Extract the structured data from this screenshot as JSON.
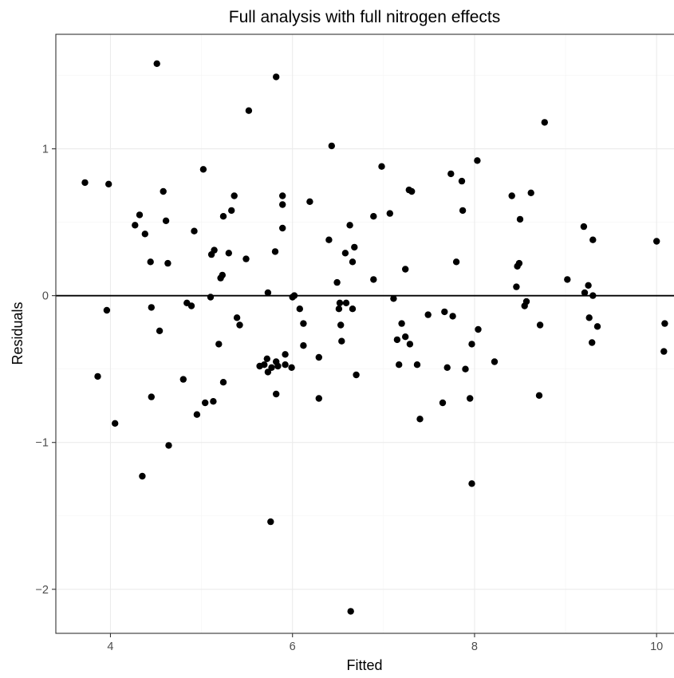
{
  "chart_data": {
    "type": "scatter",
    "title": "Full analysis with full nitrogen effects",
    "xlabel": "Fitted",
    "ylabel": "Residuals",
    "xlim": [
      3.4,
      10.2
    ],
    "ylim": [
      -2.3,
      1.78
    ],
    "x_ticks": [
      4,
      6,
      8,
      10
    ],
    "x_tick_labels": [
      "4",
      "6",
      "8",
      "10"
    ],
    "y_ticks": [
      -2,
      -1,
      0,
      1
    ],
    "y_tick_labels": [
      "−2",
      "−1",
      "0",
      "1"
    ],
    "x_minor_ticks": [
      5,
      7,
      9
    ],
    "y_minor_ticks": [
      -1.5,
      -0.5,
      0.5,
      1.5
    ],
    "grid": true,
    "reference_line_y": 0,
    "points": [
      [
        3.72,
        0.77
      ],
      [
        3.86,
        -0.55
      ],
      [
        3.96,
        -0.1
      ],
      [
        3.98,
        0.76
      ],
      [
        4.05,
        -0.87
      ],
      [
        4.27,
        0.48
      ],
      [
        4.32,
        0.55
      ],
      [
        4.35,
        -1.23
      ],
      [
        4.38,
        0.42
      ],
      [
        4.44,
        0.23
      ],
      [
        4.45,
        -0.08
      ],
      [
        4.45,
        -0.69
      ],
      [
        4.51,
        1.58
      ],
      [
        4.54,
        -0.24
      ],
      [
        4.58,
        0.71
      ],
      [
        4.61,
        0.51
      ],
      [
        4.63,
        0.22
      ],
      [
        4.64,
        -1.02
      ],
      [
        4.8,
        -0.57
      ],
      [
        4.84,
        -0.05
      ],
      [
        4.89,
        -0.07
      ],
      [
        4.92,
        0.44
      ],
      [
        4.95,
        -0.81
      ],
      [
        5.02,
        0.86
      ],
      [
        5.04,
        -0.73
      ],
      [
        5.1,
        -0.01
      ],
      [
        5.11,
        0.28
      ],
      [
        5.13,
        -0.72
      ],
      [
        5.14,
        0.31
      ],
      [
        5.19,
        -0.33
      ],
      [
        5.21,
        0.12
      ],
      [
        5.23,
        0.14
      ],
      [
        5.24,
        0.54
      ],
      [
        5.24,
        -0.59
      ],
      [
        5.3,
        0.29
      ],
      [
        5.33,
        0.58
      ],
      [
        5.36,
        0.68
      ],
      [
        5.39,
        -0.15
      ],
      [
        5.42,
        -0.2
      ],
      [
        5.49,
        0.25
      ],
      [
        5.52,
        1.26
      ],
      [
        5.64,
        -0.48
      ],
      [
        5.69,
        -0.47
      ],
      [
        5.72,
        -0.43
      ],
      [
        5.73,
        0.02
      ],
      [
        5.73,
        -0.52
      ],
      [
        5.76,
        -1.54
      ],
      [
        5.77,
        -0.49
      ],
      [
        5.81,
        0.3
      ],
      [
        5.82,
        1.49
      ],
      [
        5.82,
        -0.45
      ],
      [
        5.82,
        -0.67
      ],
      [
        5.84,
        -0.48
      ],
      [
        5.89,
        0.62
      ],
      [
        5.89,
        0.68
      ],
      [
        5.89,
        0.46
      ],
      [
        5.92,
        -0.4
      ],
      [
        5.92,
        -0.47
      ],
      [
        5.99,
        -0.49
      ],
      [
        6.0,
        -0.01
      ],
      [
        6.02,
        0.0
      ],
      [
        6.08,
        -0.09
      ],
      [
        6.12,
        -0.34
      ],
      [
        6.12,
        -0.19
      ],
      [
        6.19,
        0.64
      ],
      [
        6.29,
        -0.42
      ],
      [
        6.29,
        -0.7
      ],
      [
        6.4,
        0.38
      ],
      [
        6.43,
        1.02
      ],
      [
        6.49,
        0.09
      ],
      [
        6.51,
        -0.09
      ],
      [
        6.52,
        -0.05
      ],
      [
        6.53,
        -0.2
      ],
      [
        6.54,
        -0.31
      ],
      [
        6.58,
        0.29
      ],
      [
        6.59,
        -0.05
      ],
      [
        6.63,
        0.48
      ],
      [
        6.64,
        -2.15
      ],
      [
        6.66,
        -0.09
      ],
      [
        6.66,
        0.23
      ],
      [
        6.68,
        0.33
      ],
      [
        6.7,
        -0.54
      ],
      [
        6.89,
        0.11
      ],
      [
        6.89,
        0.54
      ],
      [
        6.98,
        0.88
      ],
      [
        7.07,
        0.56
      ],
      [
        7.11,
        -0.02
      ],
      [
        7.15,
        -0.3
      ],
      [
        7.17,
        -0.47
      ],
      [
        7.2,
        -0.19
      ],
      [
        7.24,
        -0.28
      ],
      [
        7.24,
        0.18
      ],
      [
        7.28,
        0.72
      ],
      [
        7.29,
        -0.33
      ],
      [
        7.31,
        0.71
      ],
      [
        7.37,
        -0.47
      ],
      [
        7.4,
        -0.84
      ],
      [
        7.49,
        -0.13
      ],
      [
        7.65,
        -0.73
      ],
      [
        7.67,
        -0.11
      ],
      [
        7.7,
        -0.49
      ],
      [
        7.74,
        0.83
      ],
      [
        7.76,
        -0.14
      ],
      [
        7.8,
        0.23
      ],
      [
        7.86,
        0.78
      ],
      [
        7.87,
        0.58
      ],
      [
        7.9,
        -0.5
      ],
      [
        7.95,
        -0.7
      ],
      [
        7.97,
        -1.28
      ],
      [
        7.97,
        -0.33
      ],
      [
        8.03,
        0.92
      ],
      [
        8.04,
        -0.23
      ],
      [
        8.22,
        -0.45
      ],
      [
        8.41,
        0.68
      ],
      [
        8.46,
        0.06
      ],
      [
        8.47,
        0.2
      ],
      [
        8.49,
        0.22
      ],
      [
        8.5,
        0.52
      ],
      [
        8.55,
        -0.07
      ],
      [
        8.57,
        -0.04
      ],
      [
        8.62,
        0.7
      ],
      [
        8.71,
        -0.68
      ],
      [
        8.72,
        -0.2
      ],
      [
        8.77,
        1.18
      ],
      [
        9.02,
        0.11
      ],
      [
        9.2,
        0.47
      ],
      [
        9.21,
        0.02
      ],
      [
        9.25,
        0.07
      ],
      [
        9.26,
        -0.15
      ],
      [
        9.29,
        -0.32
      ],
      [
        9.3,
        0.38
      ],
      [
        9.3,
        0.0
      ],
      [
        9.35,
        -0.21
      ],
      [
        10.0,
        0.37
      ],
      [
        10.08,
        -0.38
      ],
      [
        10.09,
        -0.19
      ]
    ]
  }
}
